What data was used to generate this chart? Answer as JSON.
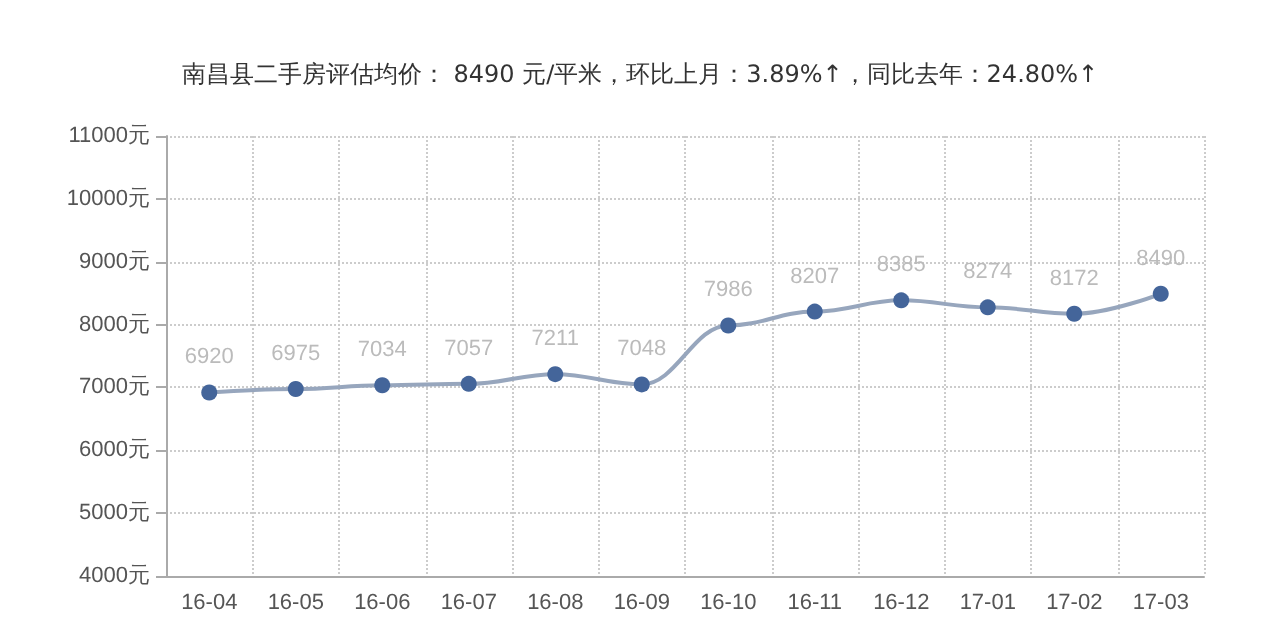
{
  "chart_data": {
    "type": "line",
    "title": "南昌县二手房评估均价： 8490 元/平米，环比上月：3.89%↑，同比去年：24.80%↑",
    "categories": [
      "16-04",
      "16-05",
      "16-06",
      "16-07",
      "16-08",
      "16-09",
      "16-10",
      "16-11",
      "16-12",
      "17-01",
      "17-02",
      "17-03"
    ],
    "series": [
      {
        "color": "#44659a",
        "values": [
          6920,
          6975,
          7034,
          7057,
          7211,
          7048,
          7986,
          8207,
          8385,
          8274,
          8172,
          8490
        ]
      }
    ],
    "ylim": [
      4000,
      11000
    ],
    "yticks": [
      {
        "value": 4000,
        "label": "4000元"
      },
      {
        "value": 5000,
        "label": "5000元"
      },
      {
        "value": 6000,
        "label": "6000元"
      },
      {
        "value": 7000,
        "label": "7000元"
      },
      {
        "value": 8000,
        "label": "8000元"
      },
      {
        "value": 9000,
        "label": "9000元"
      },
      {
        "value": 10000,
        "label": "10000元"
      },
      {
        "value": 11000,
        "label": "11000元"
      }
    ],
    "grid": true,
    "data_labels": true,
    "marker": "circle",
    "line_style": "solid"
  }
}
